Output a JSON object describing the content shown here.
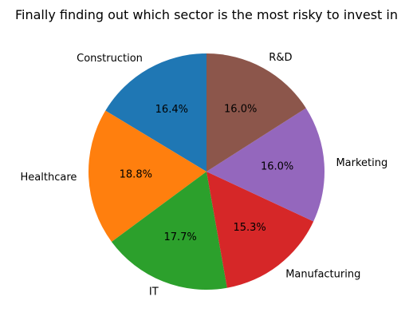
{
  "chart_data": {
    "type": "pie",
    "title": "Finally finding out which sector is the most risky to invest in",
    "categories": [
      "Construction",
      "Healthcare",
      "IT",
      "Manufacturing",
      "Marketing",
      "R&D"
    ],
    "values": [
      16.4,
      18.8,
      17.7,
      15.3,
      16.0,
      16.0
    ],
    "value_labels": [
      "16.4%",
      "18.8%",
      "17.7%",
      "15.3%",
      "16.0%",
      "16.0%"
    ],
    "colors": [
      "#1f77b4",
      "#ff7f0e",
      "#2ca02c",
      "#d62728",
      "#9467bd",
      "#8c564b"
    ],
    "start_angle_deg": 90,
    "direction": "counterclockwise",
    "legend": "none"
  }
}
